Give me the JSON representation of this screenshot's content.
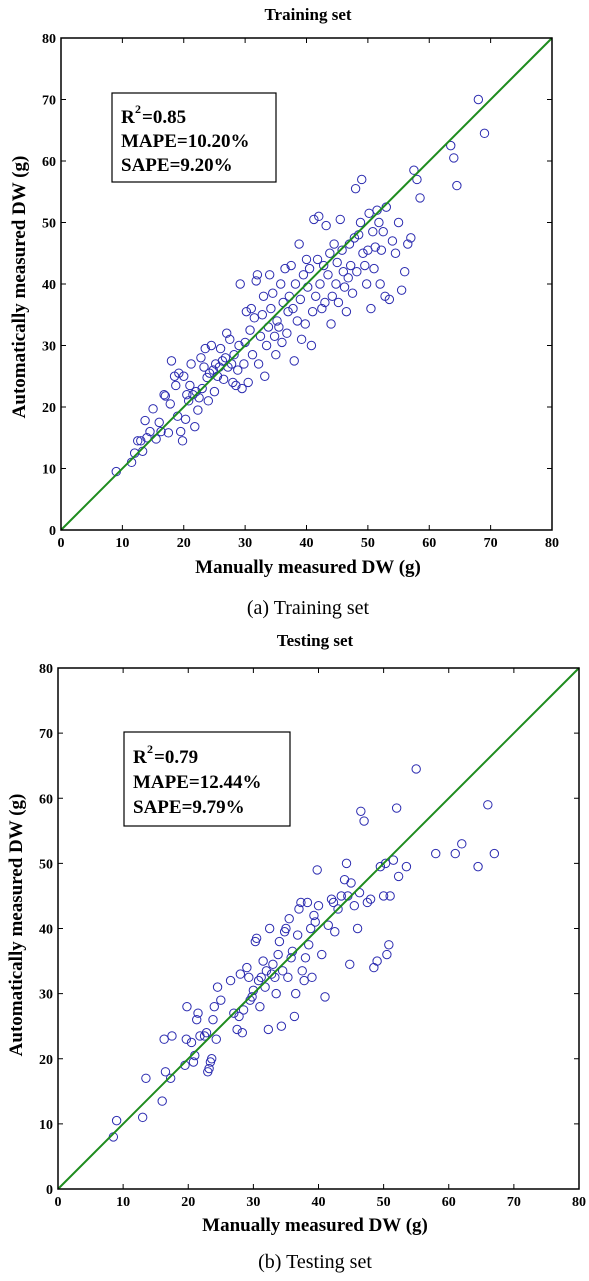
{
  "chart_data": [
    {
      "type": "scatter",
      "title": "Training set",
      "caption": "(a) Training set",
      "xlabel": "Manually measured DW (g)",
      "ylabel": "Automatically measured DW (g)",
      "xlim": [
        0,
        80
      ],
      "ylim": [
        0,
        80
      ],
      "xticks": [
        "0",
        "10",
        "20",
        "30",
        "40",
        "50",
        "60",
        "70",
        "80"
      ],
      "yticks": [
        "0",
        "10",
        "20",
        "30",
        "40",
        "50",
        "60",
        "70",
        "80"
      ],
      "grid": false,
      "stats": {
        "r2": "=0.85",
        "mape": "MAPE=10.20%",
        "sape": "SAPE=9.20%"
      },
      "fit_line": {
        "x": [
          0,
          80
        ],
        "y": [
          0,
          80
        ]
      },
      "point_color": "#2b2bb0",
      "line_color": "#1e8c1e",
      "points": [
        [
          9,
          9.5
        ],
        [
          11.5,
          11
        ],
        [
          12,
          12.5
        ],
        [
          12.5,
          14.5
        ],
        [
          13,
          14.5
        ],
        [
          13.3,
          12.8
        ],
        [
          13.7,
          17.8
        ],
        [
          14,
          15
        ],
        [
          14.5,
          16
        ],
        [
          15,
          19.7
        ],
        [
          15.5,
          14.8
        ],
        [
          16,
          17.5
        ],
        [
          16.3,
          16
        ],
        [
          16.8,
          22
        ],
        [
          17,
          21.8
        ],
        [
          17.5,
          15.8
        ],
        [
          17.8,
          20.5
        ],
        [
          18,
          27.5
        ],
        [
          18.5,
          25
        ],
        [
          18.7,
          23.5
        ],
        [
          19,
          18.5
        ],
        [
          19.2,
          25.5
        ],
        [
          19.5,
          16
        ],
        [
          19.8,
          14.5
        ],
        [
          20,
          25
        ],
        [
          20.3,
          18
        ],
        [
          20.5,
          22
        ],
        [
          20.8,
          21
        ],
        [
          21,
          23.5
        ],
        [
          21.2,
          27
        ],
        [
          21.5,
          22
        ],
        [
          21.8,
          16.8
        ],
        [
          22,
          22.5
        ],
        [
          22.3,
          19.5
        ],
        [
          22.5,
          21.5
        ],
        [
          22.8,
          28
        ],
        [
          23,
          23
        ],
        [
          23.3,
          26.5
        ],
        [
          23.5,
          29.5
        ],
        [
          23.8,
          24.8
        ],
        [
          24,
          21
        ],
        [
          24.2,
          25.5
        ],
        [
          24.5,
          30
        ],
        [
          24.8,
          26
        ],
        [
          25,
          22.5
        ],
        [
          25.2,
          27
        ],
        [
          25.5,
          25
        ],
        [
          25.8,
          26.5
        ],
        [
          26,
          29.5
        ],
        [
          26.3,
          27.5
        ],
        [
          26.5,
          24.5
        ],
        [
          26.8,
          28
        ],
        [
          27,
          32
        ],
        [
          27.2,
          26.5
        ],
        [
          27.5,
          31
        ],
        [
          27.8,
          27
        ],
        [
          28,
          24
        ],
        [
          28.2,
          28.5
        ],
        [
          28.5,
          23.5
        ],
        [
          28.8,
          26
        ],
        [
          29,
          30
        ],
        [
          29.2,
          40
        ],
        [
          29.5,
          23
        ],
        [
          29.8,
          27
        ],
        [
          30,
          30.5
        ],
        [
          30.2,
          35.5
        ],
        [
          30.5,
          24
        ],
        [
          30.8,
          32.5
        ],
        [
          31,
          36
        ],
        [
          31.2,
          28.5
        ],
        [
          31.5,
          34.5
        ],
        [
          31.8,
          40.5
        ],
        [
          32,
          41.5
        ],
        [
          32.2,
          27
        ],
        [
          32.5,
          31.5
        ],
        [
          32.8,
          35
        ],
        [
          33,
          38
        ],
        [
          33.2,
          25
        ],
        [
          33.5,
          30
        ],
        [
          33.8,
          33
        ],
        [
          34,
          41.5
        ],
        [
          34.2,
          36
        ],
        [
          34.5,
          38.5
        ],
        [
          34.8,
          31.5
        ],
        [
          35,
          28.5
        ],
        [
          35.2,
          34
        ],
        [
          35.5,
          33
        ],
        [
          35.8,
          40
        ],
        [
          36,
          30.5
        ],
        [
          36.2,
          37
        ],
        [
          36.5,
          42.5
        ],
        [
          36.8,
          32
        ],
        [
          37,
          35.5
        ],
        [
          37.2,
          38
        ],
        [
          37.5,
          43
        ],
        [
          37.8,
          36
        ],
        [
          38,
          27.5
        ],
        [
          38.2,
          40
        ],
        [
          38.5,
          34
        ],
        [
          38.8,
          46.5
        ],
        [
          39,
          37.5
        ],
        [
          39.2,
          31
        ],
        [
          39.5,
          41.5
        ],
        [
          39.8,
          33.5
        ],
        [
          40,
          44
        ],
        [
          40.2,
          39.5
        ],
        [
          40.5,
          42.5
        ],
        [
          40.8,
          30
        ],
        [
          41,
          35.5
        ],
        [
          41.2,
          50.5
        ],
        [
          41.5,
          38
        ],
        [
          41.8,
          44
        ],
        [
          42,
          51
        ],
        [
          42.2,
          40
        ],
        [
          42.5,
          36
        ],
        [
          42.8,
          43
        ],
        [
          43,
          37
        ],
        [
          43.2,
          49.5
        ],
        [
          43.5,
          41.5
        ],
        [
          43.8,
          45
        ],
        [
          44,
          33.5
        ],
        [
          44.2,
          38
        ],
        [
          44.5,
          46.5
        ],
        [
          44.8,
          40
        ],
        [
          45,
          43.5
        ],
        [
          45.2,
          37
        ],
        [
          45.5,
          50.5
        ],
        [
          45.8,
          45.5
        ],
        [
          46,
          42
        ],
        [
          46.2,
          39.5
        ],
        [
          46.5,
          35.5
        ],
        [
          46.8,
          41
        ],
        [
          47,
          46.5
        ],
        [
          47.2,
          43
        ],
        [
          47.5,
          38.5
        ],
        [
          47.8,
          47.5
        ],
        [
          48,
          55.5
        ],
        [
          48.2,
          42
        ],
        [
          48.5,
          48
        ],
        [
          48.8,
          50
        ],
        [
          49,
          57
        ],
        [
          49.2,
          45
        ],
        [
          49.5,
          43
        ],
        [
          49.8,
          40
        ],
        [
          50,
          45.5
        ],
        [
          50.2,
          51.5
        ],
        [
          50.5,
          36
        ],
        [
          50.8,
          48.5
        ],
        [
          51,
          42.5
        ],
        [
          51.2,
          46
        ],
        [
          51.5,
          52
        ],
        [
          51.8,
          50
        ],
        [
          52,
          40
        ],
        [
          52.2,
          45.5
        ],
        [
          52.5,
          48.5
        ],
        [
          52.8,
          38
        ],
        [
          53,
          52.5
        ],
        [
          53.5,
          37.5
        ],
        [
          54,
          47
        ],
        [
          54.5,
          45
        ],
        [
          55,
          50
        ],
        [
          55.5,
          39
        ],
        [
          56,
          42
        ],
        [
          56.5,
          46.5
        ],
        [
          57,
          47.5
        ],
        [
          57.5,
          58.5
        ],
        [
          58,
          57
        ],
        [
          58.5,
          54
        ],
        [
          63.5,
          62.5
        ],
        [
          64,
          60.5
        ],
        [
          64.5,
          56
        ],
        [
          68,
          70
        ],
        [
          69,
          64.5
        ]
      ]
    },
    {
      "type": "scatter",
      "title": "Testing set",
      "caption": "(b) Testing set",
      "xlabel": "Manually measured DW (g)",
      "ylabel": "Automatically measured DW (g)",
      "xlim": [
        0,
        80
      ],
      "ylim": [
        0,
        80
      ],
      "xticks": [
        "0",
        "10",
        "20",
        "30",
        "40",
        "50",
        "60",
        "70",
        "80"
      ],
      "yticks": [
        "0",
        "10",
        "20",
        "30",
        "40",
        "50",
        "60",
        "70",
        "80"
      ],
      "grid": false,
      "stats": {
        "r2": "=0.79",
        "mape": "MAPE=12.44%",
        "sape": "SAPE=9.79%"
      },
      "fit_line": {
        "x": [
          0,
          80
        ],
        "y": [
          0,
          80
        ]
      },
      "point_color": "#2b2bb0",
      "line_color": "#1e8c1e",
      "points": [
        [
          8.5,
          8
        ],
        [
          9,
          10.5
        ],
        [
          13,
          11
        ],
        [
          13.5,
          17
        ],
        [
          16,
          13.5
        ],
        [
          16.3,
          23
        ],
        [
          16.5,
          18
        ],
        [
          17.3,
          17
        ],
        [
          17.5,
          23.5
        ],
        [
          19.5,
          19
        ],
        [
          19.7,
          23
        ],
        [
          19.8,
          28
        ],
        [
          20.5,
          22.5
        ],
        [
          20.8,
          19.5
        ],
        [
          21,
          20.5
        ],
        [
          21.3,
          26
        ],
        [
          21.5,
          27
        ],
        [
          21.8,
          23.5
        ],
        [
          22.5,
          23.5
        ],
        [
          22.8,
          24
        ],
        [
          23,
          18
        ],
        [
          23.2,
          18.5
        ],
        [
          23.4,
          19.5
        ],
        [
          23.6,
          20
        ],
        [
          23.8,
          26
        ],
        [
          24,
          28
        ],
        [
          24.3,
          23
        ],
        [
          24.5,
          31
        ],
        [
          25,
          29
        ],
        [
          26.5,
          32
        ],
        [
          27,
          27
        ],
        [
          27.5,
          24.5
        ],
        [
          27.8,
          26.5
        ],
        [
          28,
          33
        ],
        [
          28.3,
          24
        ],
        [
          28.5,
          27.5
        ],
        [
          29,
          34
        ],
        [
          29.3,
          32.5
        ],
        [
          29.5,
          29
        ],
        [
          29.8,
          29.5
        ],
        [
          30,
          30.5
        ],
        [
          30.3,
          38
        ],
        [
          30.5,
          38.5
        ],
        [
          30.8,
          32
        ],
        [
          31,
          28
        ],
        [
          31.2,
          32.5
        ],
        [
          31.5,
          35
        ],
        [
          31.8,
          31
        ],
        [
          32,
          33.5
        ],
        [
          32.3,
          24.5
        ],
        [
          32.5,
          40
        ],
        [
          32.8,
          33
        ],
        [
          33,
          34.5
        ],
        [
          33.3,
          32.5
        ],
        [
          33.5,
          30
        ],
        [
          33.8,
          36
        ],
        [
          34,
          38
        ],
        [
          34.3,
          25
        ],
        [
          34.5,
          33.5
        ],
        [
          34.8,
          39.5
        ],
        [
          35,
          40
        ],
        [
          35.3,
          32.5
        ],
        [
          35.5,
          41.5
        ],
        [
          35.8,
          35.5
        ],
        [
          36,
          36.5
        ],
        [
          36.3,
          26.5
        ],
        [
          36.5,
          30
        ],
        [
          36.8,
          39
        ],
        [
          37,
          43
        ],
        [
          37.3,
          44
        ],
        [
          37.5,
          33.5
        ],
        [
          37.8,
          32
        ],
        [
          38,
          35.5
        ],
        [
          38.3,
          44
        ],
        [
          38.5,
          37.5
        ],
        [
          38.8,
          40
        ],
        [
          39,
          32.5
        ],
        [
          39.3,
          42
        ],
        [
          39.5,
          41
        ],
        [
          39.8,
          49
        ],
        [
          40,
          43.5
        ],
        [
          40.5,
          36
        ],
        [
          41,
          29.5
        ],
        [
          41.5,
          40.5
        ],
        [
          42,
          44.5
        ],
        [
          42.3,
          44
        ],
        [
          42.5,
          39.5
        ],
        [
          43,
          43
        ],
        [
          43.5,
          45
        ],
        [
          44,
          47.5
        ],
        [
          44.3,
          50
        ],
        [
          44.5,
          45
        ],
        [
          44.8,
          34.5
        ],
        [
          45,
          47
        ],
        [
          45.5,
          43.5
        ],
        [
          46,
          40
        ],
        [
          46.3,
          45.5
        ],
        [
          46.5,
          58
        ],
        [
          47,
          56.5
        ],
        [
          47.5,
          44
        ],
        [
          48,
          44.5
        ],
        [
          48.5,
          34
        ],
        [
          49,
          35
        ],
        [
          49.5,
          49.5
        ],
        [
          50,
          45
        ],
        [
          50.3,
          50
        ],
        [
          50.5,
          36
        ],
        [
          50.8,
          37.5
        ],
        [
          51,
          45
        ],
        [
          51.5,
          50.5
        ],
        [
          52,
          58.5
        ],
        [
          52.3,
          48
        ],
        [
          53.5,
          49.5
        ],
        [
          55,
          64.5
        ],
        [
          58,
          51.5
        ],
        [
          61,
          51.5
        ],
        [
          62,
          53
        ],
        [
          64.5,
          49.5
        ],
        [
          66,
          59
        ],
        [
          67,
          51.5
        ]
      ]
    }
  ]
}
